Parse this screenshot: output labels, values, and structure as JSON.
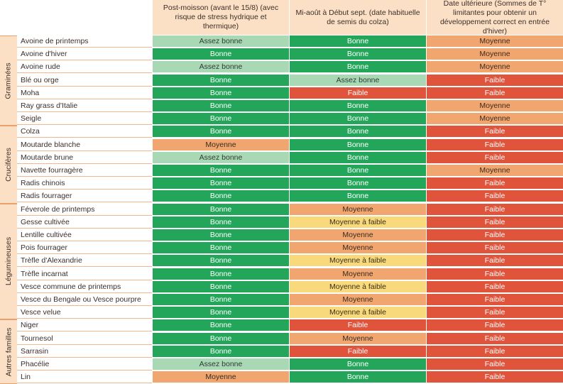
{
  "header": {
    "col1": "Post-moisson (avant le 15/8) (avec risque de stress hydrique et thermique)",
    "col2": "Mi-août à Début sept. (date habituelle de semis du colza)",
    "col3": "Date ultérieure (Sommes de T° limitantes pour obtenir un développement correct en entrée d'hiver)"
  },
  "colors": {
    "Assez bonne": "#a8d8b4",
    "Bonne": "#24a65a",
    "Moyenne": "#f0a66e",
    "Moyenne à faible": "#f8d97c",
    "Faible": "#e0543c",
    "header_bg": "#fbe0c6"
  },
  "families": [
    {
      "name": "Graminées",
      "rows": [
        {
          "crop": "Avoine de printemps",
          "values": [
            "Assez bonne",
            "Bonne",
            "Moyenne"
          ]
        },
        {
          "crop": "Avoine d'hiver",
          "values": [
            "Bonne",
            "Bonne",
            "Moyenne"
          ]
        },
        {
          "crop": "Avoine rude",
          "values": [
            "Assez bonne",
            "Bonne",
            "Moyenne"
          ]
        },
        {
          "crop": "Blé ou orge",
          "values": [
            "Bonne",
            "Assez bonne",
            "Faible"
          ]
        },
        {
          "crop": "Moha",
          "values": [
            "Bonne",
            "Faible",
            "Faible"
          ]
        },
        {
          "crop": "Ray grass d'Italie",
          "values": [
            "Bonne",
            "Bonne",
            "Moyenne"
          ]
        },
        {
          "crop": "Seigle",
          "values": [
            "Bonne",
            "Bonne",
            "Moyenne"
          ]
        }
      ]
    },
    {
      "name": "Crucifères",
      "rows": [
        {
          "crop": "Colza",
          "values": [
            "Bonne",
            "Bonne",
            "Faible"
          ]
        },
        {
          "crop": "Moutarde blanche",
          "values": [
            "Moyenne",
            "Bonne",
            "Faible"
          ]
        },
        {
          "crop": "Moutarde brune",
          "values": [
            "Assez bonne",
            "Bonne",
            "Faible"
          ]
        },
        {
          "crop": "Navette fourragère",
          "values": [
            "Bonne",
            "Bonne",
            "Moyenne"
          ]
        },
        {
          "crop": "Radis chinois",
          "values": [
            "Bonne",
            "Bonne",
            "Faible"
          ]
        },
        {
          "crop": "Radis fourrager",
          "values": [
            "Bonne",
            "Bonne",
            "Faible"
          ]
        }
      ]
    },
    {
      "name": "Légumineuses",
      "rows": [
        {
          "crop": "Féverole de printemps",
          "values": [
            "Bonne",
            "Moyenne",
            "Faible"
          ]
        },
        {
          "crop": "Gesse cultivée",
          "values": [
            "Bonne",
            "Moyenne à faible",
            "Faible"
          ]
        },
        {
          "crop": "Lentille cultivée",
          "values": [
            "Bonne",
            "Moyenne",
            "Faible"
          ]
        },
        {
          "crop": "Pois fourrager",
          "values": [
            "Bonne",
            "Moyenne",
            "Faible"
          ]
        },
        {
          "crop": "Trèfle d'Alexandrie",
          "values": [
            "Bonne",
            "Moyenne à faible",
            "Faible"
          ]
        },
        {
          "crop": "Trèfle incarnat",
          "values": [
            "Bonne",
            "Moyenne",
            "Faible"
          ]
        },
        {
          "crop": "Vesce commune de printemps",
          "values": [
            "Bonne",
            "Moyenne à faible",
            "Faible"
          ]
        },
        {
          "crop": "Vesce du Bengale ou Vesce pourpre",
          "values": [
            "Bonne",
            "Moyenne",
            "Faible"
          ]
        },
        {
          "crop": "Vesce velue",
          "values": [
            "Bonne",
            "Moyenne à faible",
            "Faible"
          ]
        }
      ]
    },
    {
      "name": "Autres familles",
      "rows": [
        {
          "crop": "Niger",
          "values": [
            "Bonne",
            "Faible",
            "Faible"
          ]
        },
        {
          "crop": "Tournesol",
          "values": [
            "Bonne",
            "Moyenne",
            "Faible"
          ]
        },
        {
          "crop": "Sarrasin",
          "values": [
            "Bonne",
            "Faible",
            "Faible"
          ]
        },
        {
          "crop": "Phacélie",
          "values": [
            "Assez bonne",
            "Bonne",
            "Faible"
          ]
        },
        {
          "crop": "Lin",
          "values": [
            "Moyenne",
            "Bonne",
            "Faible"
          ]
        }
      ]
    }
  ]
}
